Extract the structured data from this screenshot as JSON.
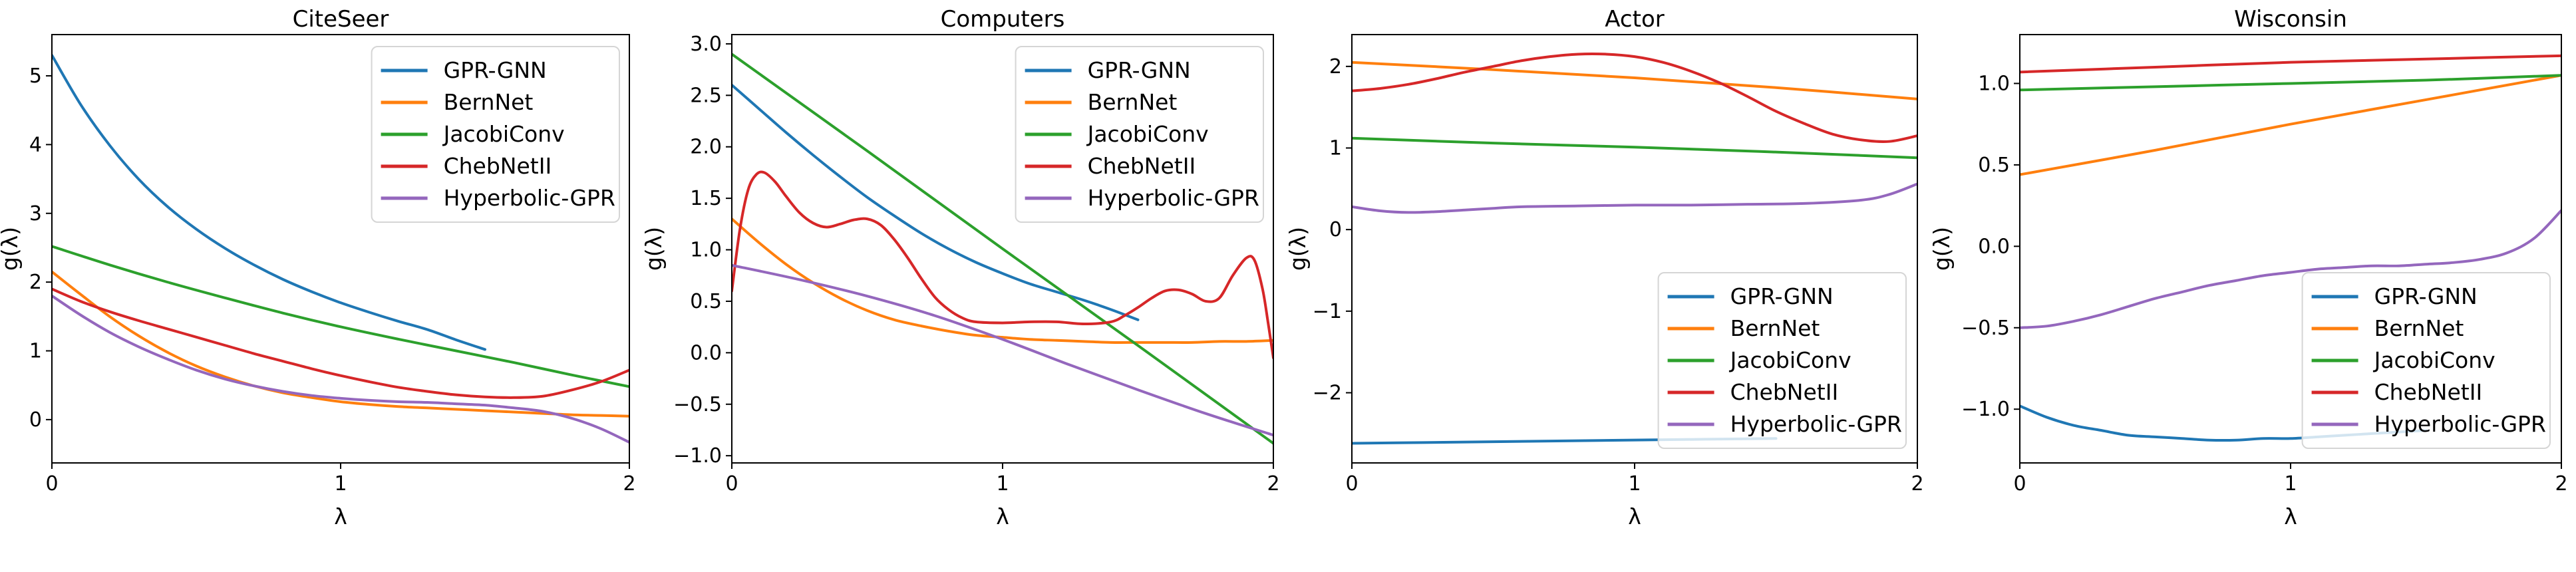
{
  "figure": {
    "background": "#ffffff",
    "text_color": "#000000",
    "spine_color": "#000000",
    "legend_border_color": "#d5d5d5",
    "legend_background": "#ffffff"
  },
  "chart_data": [
    {
      "type": "line",
      "title": "CiteSeer",
      "xlabel": "λ",
      "ylabel": "g(λ)",
      "xlim": [
        0,
        2
      ],
      "ylim": [
        -0.63,
        5.6
      ],
      "xticks": [
        0,
        1,
        2
      ],
      "xtick_labels": [
        "0",
        "1",
        "2"
      ],
      "yticks": [
        0,
        1,
        2,
        3,
        4,
        5
      ],
      "ytick_labels": [
        "0",
        "1",
        "2",
        "3",
        "4",
        "5"
      ],
      "grid": false,
      "legend_position": "upper-right",
      "series": [
        {
          "name": "GPR-GNN",
          "color": "#1f77b4",
          "x": [
            0,
            0.1,
            0.2,
            0.3,
            0.4,
            0.5,
            0.6,
            0.7,
            0.8,
            0.9,
            1.0,
            1.1,
            1.2,
            1.3,
            1.4,
            1.5
          ],
          "y": [
            5.3,
            4.58,
            3.99,
            3.5,
            3.1,
            2.77,
            2.49,
            2.25,
            2.04,
            1.86,
            1.7,
            1.56,
            1.43,
            1.31,
            1.16,
            1.02
          ]
        },
        {
          "name": "BernNet",
          "color": "#ff7f0e",
          "x": [
            0,
            0.1,
            0.2,
            0.3,
            0.4,
            0.5,
            0.6,
            0.7,
            0.8,
            0.9,
            1.0,
            1.1,
            1.2,
            1.3,
            1.4,
            1.5,
            1.6,
            1.7,
            1.8,
            1.9,
            2.0
          ],
          "y": [
            2.15,
            1.82,
            1.5,
            1.22,
            0.98,
            0.78,
            0.62,
            0.49,
            0.39,
            0.32,
            0.26,
            0.22,
            0.19,
            0.17,
            0.15,
            0.13,
            0.11,
            0.09,
            0.07,
            0.06,
            0.05
          ]
        },
        {
          "name": "JacobiConv",
          "color": "#2ca02c",
          "x": [
            0,
            0.2,
            0.4,
            0.6,
            0.8,
            1.0,
            1.2,
            1.4,
            1.6,
            1.8,
            2.0
          ],
          "y": [
            2.52,
            2.25,
            2.0,
            1.77,
            1.55,
            1.35,
            1.17,
            1.0,
            0.83,
            0.65,
            0.48
          ]
        },
        {
          "name": "ChebNetII",
          "color": "#d62728",
          "x": [
            0,
            0.1,
            0.2,
            0.3,
            0.4,
            0.5,
            0.6,
            0.7,
            0.8,
            0.9,
            1.0,
            1.1,
            1.2,
            1.3,
            1.4,
            1.5,
            1.6,
            1.7,
            1.8,
            1.9,
            2.0
          ],
          "y": [
            1.9,
            1.72,
            1.57,
            1.44,
            1.32,
            1.2,
            1.08,
            0.96,
            0.85,
            0.74,
            0.64,
            0.55,
            0.47,
            0.41,
            0.36,
            0.33,
            0.32,
            0.34,
            0.43,
            0.55,
            0.72
          ]
        },
        {
          "name": "Hyperbolic-GPR",
          "color": "#9467bd",
          "x": [
            0,
            0.1,
            0.2,
            0.3,
            0.4,
            0.5,
            0.6,
            0.7,
            0.8,
            0.9,
            1.0,
            1.1,
            1.2,
            1.3,
            1.4,
            1.5,
            1.6,
            1.7,
            1.8,
            1.9,
            2.0
          ],
          "y": [
            1.8,
            1.52,
            1.27,
            1.06,
            0.88,
            0.72,
            0.59,
            0.49,
            0.41,
            0.35,
            0.31,
            0.28,
            0.26,
            0.25,
            0.23,
            0.21,
            0.17,
            0.12,
            0.02,
            -0.13,
            -0.33
          ]
        }
      ]
    },
    {
      "type": "line",
      "title": "Computers",
      "xlabel": "λ",
      "ylabel": "g(λ)",
      "xlim": [
        0,
        2
      ],
      "ylim": [
        -1.07,
        3.09
      ],
      "xticks": [
        0,
        1,
        2
      ],
      "xtick_labels": [
        "0",
        "1",
        "2"
      ],
      "yticks": [
        -1.0,
        -0.5,
        0.0,
        0.5,
        1.0,
        1.5,
        2.0,
        2.5,
        3.0
      ],
      "ytick_labels": [
        "−1.0",
        "−0.5",
        "0.0",
        "0.5",
        "1.0",
        "1.5",
        "2.0",
        "2.5",
        "3.0"
      ],
      "grid": false,
      "legend_position": "upper-right",
      "series": [
        {
          "name": "GPR-GNN",
          "color": "#1f77b4",
          "x": [
            0,
            0.1,
            0.2,
            0.3,
            0.4,
            0.5,
            0.6,
            0.7,
            0.8,
            0.9,
            1.0,
            1.1,
            1.2,
            1.3,
            1.4,
            1.5
          ],
          "y": [
            2.6,
            2.37,
            2.14,
            1.92,
            1.71,
            1.51,
            1.33,
            1.16,
            1.01,
            0.88,
            0.77,
            0.67,
            0.59,
            0.51,
            0.42,
            0.32
          ]
        },
        {
          "name": "BernNet",
          "color": "#ff7f0e",
          "x": [
            0,
            0.1,
            0.2,
            0.3,
            0.4,
            0.5,
            0.6,
            0.7,
            0.8,
            0.9,
            1.0,
            1.1,
            1.2,
            1.3,
            1.4,
            1.5,
            1.6,
            1.7,
            1.8,
            1.9,
            2.0
          ],
          "y": [
            1.3,
            1.07,
            0.86,
            0.68,
            0.53,
            0.41,
            0.32,
            0.26,
            0.21,
            0.17,
            0.15,
            0.13,
            0.12,
            0.11,
            0.1,
            0.1,
            0.1,
            0.1,
            0.11,
            0.11,
            0.12
          ]
        },
        {
          "name": "JacobiConv",
          "color": "#2ca02c",
          "x": [
            0,
            0.5,
            1.0,
            1.5,
            2.0
          ],
          "y": [
            2.9,
            1.96,
            1.01,
            0.07,
            -0.88
          ]
        },
        {
          "name": "ChebNetII",
          "color": "#d62728",
          "x": [
            0,
            0.03,
            0.06,
            0.09,
            0.12,
            0.16,
            0.2,
            0.25,
            0.3,
            0.35,
            0.4,
            0.45,
            0.5,
            0.55,
            0.6,
            0.65,
            0.7,
            0.75,
            0.8,
            0.85,
            0.9,
            1.0,
            1.1,
            1.2,
            1.3,
            1.4,
            1.45,
            1.5,
            1.55,
            1.6,
            1.65,
            1.7,
            1.75,
            1.8,
            1.85,
            1.9,
            1.93,
            1.96,
            1.98,
            2.0
          ],
          "y": [
            0.6,
            1.2,
            1.58,
            1.73,
            1.75,
            1.66,
            1.52,
            1.36,
            1.26,
            1.22,
            1.25,
            1.29,
            1.3,
            1.24,
            1.1,
            0.92,
            0.72,
            0.54,
            0.42,
            0.34,
            0.3,
            0.29,
            0.3,
            0.3,
            0.28,
            0.3,
            0.36,
            0.44,
            0.53,
            0.6,
            0.61,
            0.57,
            0.5,
            0.53,
            0.75,
            0.92,
            0.9,
            0.62,
            0.3,
            -0.05
          ]
        },
        {
          "name": "Hyperbolic-GPR",
          "color": "#9467bd",
          "x": [
            0,
            0.25,
            0.5,
            0.75,
            1.0,
            1.25,
            1.5,
            1.75,
            2.0
          ],
          "y": [
            0.85,
            0.71,
            0.55,
            0.36,
            0.13,
            -0.12,
            -0.36,
            -0.59,
            -0.8
          ]
        }
      ]
    },
    {
      "type": "line",
      "title": "Actor",
      "xlabel": "λ",
      "ylabel": "g(λ)",
      "xlim": [
        0,
        2
      ],
      "ylim": [
        -2.86,
        2.39
      ],
      "xticks": [
        0,
        1,
        2
      ],
      "xtick_labels": [
        "0",
        "1",
        "2"
      ],
      "yticks": [
        -2,
        -1,
        0,
        1,
        2
      ],
      "ytick_labels": [
        "−2",
        "−1",
        "0",
        "1",
        "2"
      ],
      "grid": false,
      "legend_position": "lower-right",
      "series": [
        {
          "name": "GPR-GNN",
          "color": "#1f77b4",
          "x": [
            0,
            0.25,
            0.5,
            0.75,
            1.0,
            1.25,
            1.5
          ],
          "y": [
            -2.62,
            -2.61,
            -2.6,
            -2.59,
            -2.58,
            -2.57,
            -2.56
          ]
        },
        {
          "name": "BernNet",
          "color": "#ff7f0e",
          "x": [
            0,
            0.5,
            1.0,
            1.5,
            2.0
          ],
          "y": [
            2.05,
            1.96,
            1.86,
            1.74,
            1.6
          ]
        },
        {
          "name": "JacobiConv",
          "color": "#2ca02c",
          "x": [
            0,
            0.5,
            1.0,
            1.5,
            2.0
          ],
          "y": [
            1.12,
            1.06,
            1.01,
            0.95,
            0.88
          ]
        },
        {
          "name": "ChebNetII",
          "color": "#d62728",
          "x": [
            0,
            0.1,
            0.2,
            0.3,
            0.4,
            0.5,
            0.6,
            0.7,
            0.8,
            0.9,
            1.0,
            1.1,
            1.2,
            1.3,
            1.4,
            1.5,
            1.6,
            1.7,
            1.8,
            1.9,
            2.0
          ],
          "y": [
            1.7,
            1.73,
            1.78,
            1.85,
            1.93,
            2.0,
            2.07,
            2.12,
            2.15,
            2.15,
            2.12,
            2.05,
            1.94,
            1.8,
            1.63,
            1.45,
            1.3,
            1.17,
            1.1,
            1.08,
            1.15
          ]
        },
        {
          "name": "Hyperbolic-GPR",
          "color": "#9467bd",
          "x": [
            0,
            0.1,
            0.2,
            0.3,
            0.4,
            0.5,
            0.6,
            0.8,
            1.0,
            1.2,
            1.4,
            1.6,
            1.8,
            1.9,
            2.0
          ],
          "y": [
            0.28,
            0.23,
            0.21,
            0.22,
            0.24,
            0.26,
            0.28,
            0.29,
            0.3,
            0.3,
            0.31,
            0.32,
            0.36,
            0.43,
            0.56
          ]
        }
      ]
    },
    {
      "type": "line",
      "title": "Wisconsin",
      "xlabel": "λ",
      "ylabel": "g(λ)",
      "xlim": [
        0,
        2
      ],
      "ylim": [
        -1.33,
        1.3
      ],
      "xticks": [
        0,
        1,
        2
      ],
      "xtick_labels": [
        "0",
        "1",
        "2"
      ],
      "yticks": [
        -1.0,
        -0.5,
        0.0,
        0.5,
        1.0
      ],
      "ytick_labels": [
        "−1.0",
        "−0.5",
        "0.0",
        "0.5",
        "1.0"
      ],
      "grid": false,
      "legend_position": "lower-right",
      "series": [
        {
          "name": "GPR-GNN",
          "color": "#1f77b4",
          "x": [
            0,
            0.1,
            0.2,
            0.3,
            0.4,
            0.5,
            0.6,
            0.7,
            0.8,
            0.9,
            1.0,
            1.1,
            1.2,
            1.3,
            1.4,
            1.5
          ],
          "y": [
            -0.98,
            -1.05,
            -1.1,
            -1.13,
            -1.16,
            -1.17,
            -1.18,
            -1.19,
            -1.19,
            -1.18,
            -1.18,
            -1.17,
            -1.16,
            -1.15,
            -1.14,
            -1.13
          ]
        },
        {
          "name": "BernNet",
          "color": "#ff7f0e",
          "x": [
            0,
            0.5,
            1.0,
            1.5,
            2.0
          ],
          "y": [
            0.44,
            0.59,
            0.75,
            0.9,
            1.05
          ]
        },
        {
          "name": "JacobiConv",
          "color": "#2ca02c",
          "x": [
            0,
            0.5,
            1.0,
            1.5,
            2.0
          ],
          "y": [
            0.96,
            0.98,
            1.0,
            1.02,
            1.05
          ]
        },
        {
          "name": "ChebNetII",
          "color": "#d62728",
          "x": [
            0,
            0.5,
            1.0,
            1.5,
            2.0
          ],
          "y": [
            1.07,
            1.1,
            1.13,
            1.15,
            1.17
          ]
        },
        {
          "name": "Hyperbolic-GPR",
          "color": "#9467bd",
          "x": [
            0,
            0.1,
            0.2,
            0.3,
            0.4,
            0.5,
            0.6,
            0.7,
            0.8,
            0.9,
            1.0,
            1.1,
            1.2,
            1.3,
            1.4,
            1.5,
            1.6,
            1.7,
            1.8,
            1.9,
            2.0
          ],
          "y": [
            -0.5,
            -0.49,
            -0.46,
            -0.42,
            -0.37,
            -0.32,
            -0.28,
            -0.24,
            -0.21,
            -0.18,
            -0.16,
            -0.14,
            -0.13,
            -0.12,
            -0.12,
            -0.11,
            -0.1,
            -0.08,
            -0.04,
            0.05,
            0.22
          ]
        }
      ]
    }
  ]
}
